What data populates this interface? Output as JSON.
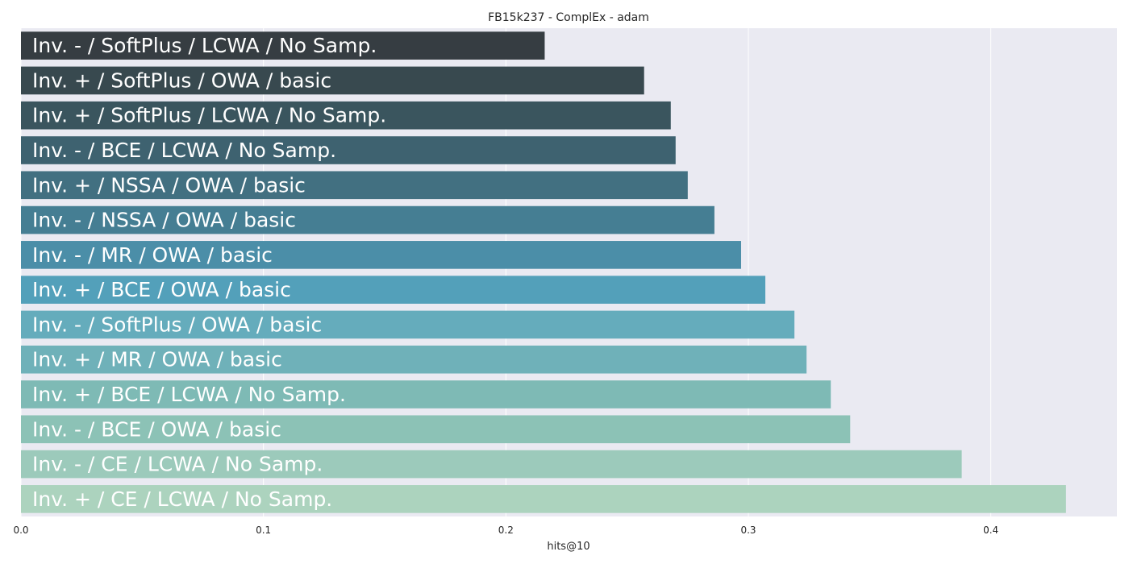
{
  "chart_data": {
    "type": "bar",
    "orientation": "horizontal",
    "title": "FB15k237 - ComplEx - adam",
    "xlabel": "hits@10",
    "ylabel": "",
    "xlim": [
      0,
      0.452
    ],
    "xticks": [
      0.0,
      0.1,
      0.2,
      0.3,
      0.4
    ],
    "xtick_labels": [
      "0.0",
      "0.1",
      "0.2",
      "0.3",
      "0.4"
    ],
    "grid": true,
    "categories": [
      "Inv. - / SoftPlus / LCWA / No Samp.",
      "Inv. + / SoftPlus / OWA / basic",
      "Inv. + / SoftPlus / LCWA / No Samp.",
      "Inv. - / BCE / LCWA / No Samp.",
      "Inv. + / NSSA / OWA / basic",
      "Inv. - / NSSA / OWA / basic",
      "Inv. - / MR / OWA / basic",
      "Inv. + / BCE / OWA / basic",
      "Inv. - / SoftPlus / OWA / basic",
      "Inv. + / MR / OWA / basic",
      "Inv. + / BCE / LCWA / No Samp.",
      "Inv. - / BCE / OWA / basic",
      "Inv. - / CE / LCWA / No Samp.",
      "Inv. + / CE / LCWA / No Samp."
    ],
    "values": [
      0.216,
      0.257,
      0.268,
      0.27,
      0.275,
      0.286,
      0.297,
      0.307,
      0.319,
      0.324,
      0.334,
      0.342,
      0.388,
      0.431
    ],
    "colors": [
      "#363d42",
      "#38494f",
      "#3a555e",
      "#3e6270",
      "#427081",
      "#457e93",
      "#4b8ea8",
      "#53a0ba",
      "#65acbc",
      "#6fb1b9",
      "#7ebab5",
      "#8cc2b6",
      "#9ccabb",
      "#acd3be"
    ],
    "plot_background": "#eaeaf2"
  }
}
